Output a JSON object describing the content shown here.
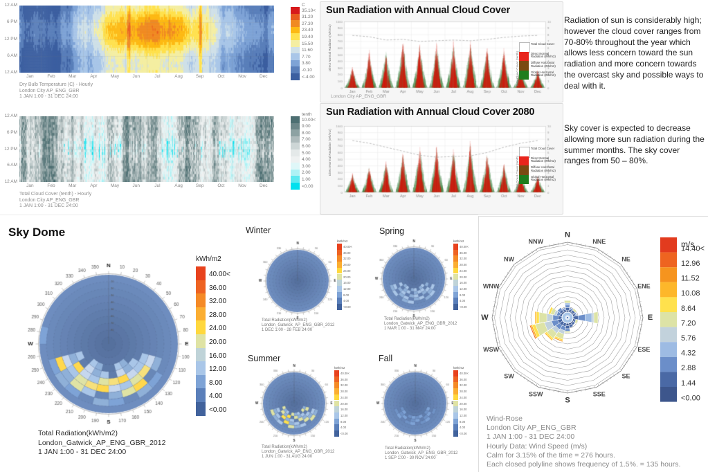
{
  "months": [
    "Jan",
    "Feb",
    "Mar",
    "Apr",
    "May",
    "Jun",
    "Jul",
    "Aug",
    "Sep",
    "Oct",
    "Nov",
    "Dec"
  ],
  "hour_ticks": [
    "12 AM",
    "6 PM",
    "12 PM",
    "6 AM",
    "12 AM"
  ],
  "heatmap_temp": {
    "unit": "C",
    "legend_labels": [
      "35.10<",
      "31.20",
      "27.30",
      "23.40",
      "19.40",
      "15.50",
      "11.60",
      "7.70",
      "3.80",
      "-0.10",
      "<-4.00"
    ],
    "legend_colors": [
      "#d7191c",
      "#e85b1f",
      "#f08a22",
      "#fdb913",
      "#ffe14d",
      "#f4eea2",
      "#cfe0e8",
      "#a9c6e8",
      "#7ea3d6",
      "#5a7fba",
      "#3c5fa0"
    ],
    "caption": [
      "Dry Bulb Temperature (C) - Hourly",
      "London City AP_ENG_GBR",
      "1 JAN 1:00 - 31 DEC 24:00"
    ]
  },
  "heatmap_cloud": {
    "unit": "tenth",
    "legend_labels": [
      "10.00<",
      "9.00",
      "8.00",
      "7.00",
      "6.00",
      "5.00",
      "4.00",
      "3.00",
      "2.00",
      "1.00",
      "<0.00"
    ],
    "legend_colors": [
      "#4d6f72",
      "#6c8688",
      "#8da2a3",
      "#aebbbc",
      "#cdd6d6",
      "#e4e9e9",
      "#eef1f1",
      "#dff7f8",
      "#aef2f5",
      "#5ee9f0",
      "#00e0ee"
    ],
    "caption": [
      "Total Cloud Cover (tenth) - Hourly",
      "London City AP_ENG_GBR",
      "1 JAN 1:00 - 31 DEC 24:00"
    ]
  },
  "radiation_now": {
    "title": "Sun Radiation with Annual Cloud Cover",
    "ylabel": "Direct Normal Radiation (Wh/m2)",
    "y2label": "Total Cloud Cover (tenth)",
    "caption": "London City AP_ENG_GBR",
    "legend": [
      {
        "label": "Total Cloud Cover",
        "color": "#ffffff"
      },
      {
        "label": "Direct Normal Radiation (Wh/m2)",
        "color": "#e8251c"
      },
      {
        "label": "Diffuse Horizontal Radiation (Wh/m2)",
        "color": "#7a4a12"
      },
      {
        "label": "Global Horizontal Radiation (Wh/m2)",
        "color": "#1e7d1e"
      }
    ]
  },
  "radiation_2080": {
    "title": "Sun Radiation with Annual Cloud Cover 2080",
    "ylabel": "Direct Normal Radiation (Wh/m2)",
    "y2label": "Total Cloud Cover (tenth)"
  },
  "annotations": {
    "para1": "Radiation of sun is considerably high; however the cloud cover ranges from 70-80% throughout the year which allows less concern toward the sun radiation and more concern towards the overcast sky and possible ways to deal with it.",
    "para2": "Sky cover is expected to decrease allowing more sun radiation during the summer months. The sky cover ranges from 50 – 80%."
  },
  "sky_dome": {
    "title": "Sky Dome",
    "legend_unit": "kWh/m2",
    "legend_labels": [
      "40.00<",
      "36.00",
      "32.00",
      "28.00",
      "24.00",
      "20.00",
      "16.00",
      "12.00",
      "8.00",
      "4.00",
      "<0.00"
    ],
    "legend_colors": [
      "#e8421d",
      "#ee6322",
      "#f58a26",
      "#fbae32",
      "#ffd83e",
      "#dfe3a4",
      "#bfd3d8",
      "#a9c6e8",
      "#7ea3d6",
      "#5a7fba",
      "#41629c"
    ],
    "caption": [
      "Total Radiation(kWh/m2)",
      "London_Gatwick_AP_ENG_GBR_2012",
      "1 JAN 1:00 - 31 DEC 24:00"
    ]
  },
  "seasonal_domes": [
    {
      "title": "Winter",
      "caption": [
        "Total Radiation(kWh/m2)",
        "London_Gatwick_AP_ENG_GBR_2012",
        "1 DEC 1:00 - 28 FEB 24:00"
      ]
    },
    {
      "title": "Spring",
      "caption": [
        "Total Radiation(kWh/m2)",
        "London_Gatwick_AP_ENG_GBR_2012",
        "1 MAR 1:00 - 31 MAY 24:00"
      ]
    },
    {
      "title": "Summer",
      "caption": [
        "Total Radiation(kWh/m2)",
        "London_Gatwick_AP_ENG_GBR_2012",
        "1 JUN 1:00 - 31 AUG 24:00"
      ]
    },
    {
      "title": "Fall",
      "caption": [
        "Total Radiation(kWh/m2)",
        "London_Gatwick_AP_ENG_GBR_2012",
        "1 SEP 1:00 - 30 NOV 24:00"
      ]
    }
  ],
  "wind_rose": {
    "legend_unit": "m/s",
    "legend_labels": [
      "14.40<",
      "12.96",
      "11.52",
      "10.08",
      "8.64",
      "7.20",
      "5.76",
      "4.32",
      "2.88",
      "1.44",
      "<0.00"
    ],
    "legend_colors": [
      "#e23b1e",
      "#ee6420",
      "#f6941e",
      "#fdb72a",
      "#ffe14d",
      "#dde3a6",
      "#c2d2dc",
      "#9dbbe3",
      "#6b8ec9",
      "#4a69a5",
      "#3d568c"
    ],
    "compass": [
      "N",
      "NNE",
      "NE",
      "ENE",
      "E",
      "ESE",
      "SE",
      "SSE",
      "S",
      "SSW",
      "SW",
      "WSW",
      "W",
      "WNW",
      "NW",
      "NNW"
    ],
    "caption": [
      "Wind-Rose",
      "London City AP_ENG_GBR",
      "1 JAN 1:00 - 31 DEC 24:00",
      "Hourly Data: Wind Speed (m/s)",
      "Calm for 3.15% of the time = 276 hours.",
      "Each closed polyline shows frequency of 1.5%. = 135 hours."
    ],
    "petals": [
      {
        "dir": "N",
        "stack": [
          [
            0,
            0.4
          ],
          [
            1,
            0.5
          ],
          [
            2,
            0.5
          ],
          [
            3,
            0.4
          ],
          [
            5,
            0.5
          ]
        ]
      },
      {
        "dir": "NNE",
        "stack": [
          [
            0,
            0.3
          ],
          [
            1,
            0.3
          ],
          [
            2,
            0.3
          ]
        ]
      },
      {
        "dir": "NE",
        "stack": [
          [
            0,
            0.3
          ],
          [
            1,
            0.4
          ],
          [
            5,
            0.4
          ]
        ]
      },
      {
        "dir": "ENE",
        "stack": [
          [
            0,
            0.3
          ],
          [
            1,
            0.3
          ],
          [
            2,
            0.2
          ]
        ]
      },
      {
        "dir": "E",
        "stack": [
          [
            1,
            1.0
          ],
          [
            2,
            1.4
          ],
          [
            3,
            1.3
          ],
          [
            4,
            0.4
          ],
          [
            5,
            0.8
          ]
        ]
      },
      {
        "dir": "ESE",
        "stack": [
          [
            0,
            0.3
          ],
          [
            1,
            0.3
          ],
          [
            5,
            0.4
          ]
        ]
      },
      {
        "dir": "SE",
        "stack": [
          [
            0,
            0.3
          ],
          [
            1,
            0.4
          ]
        ]
      },
      {
        "dir": "SSE",
        "stack": [
          [
            0,
            0.4
          ],
          [
            1,
            0.5
          ]
        ]
      },
      {
        "dir": "S",
        "stack": [
          [
            0,
            0.5
          ],
          [
            1,
            0.6
          ],
          [
            2,
            0.5
          ],
          [
            5,
            0.3
          ]
        ]
      },
      {
        "dir": "SSW",
        "stack": [
          [
            1,
            0.7
          ],
          [
            2,
            0.8
          ],
          [
            4,
            0.7
          ],
          [
            5,
            1.0
          ],
          [
            6,
            0.3
          ],
          [
            8,
            0.2
          ]
        ]
      },
      {
        "dir": "SW",
        "stack": [
          [
            1,
            0.8
          ],
          [
            2,
            0.9
          ],
          [
            4,
            0.9
          ],
          [
            5,
            1.2
          ],
          [
            6,
            0.3
          ],
          [
            7,
            0.2
          ]
        ]
      },
      {
        "dir": "WSW",
        "stack": [
          [
            1,
            0.9
          ],
          [
            2,
            1.2
          ],
          [
            4,
            1.4
          ],
          [
            5,
            1.8
          ],
          [
            6,
            0.6
          ],
          [
            7,
            0.3
          ],
          [
            9,
            0.2
          ]
        ]
      },
      {
        "dir": "W",
        "stack": [
          [
            1,
            0.8
          ],
          [
            2,
            1.0
          ],
          [
            4,
            1.2
          ],
          [
            5,
            1.5
          ],
          [
            6,
            0.5
          ],
          [
            7,
            0.3
          ]
        ]
      },
      {
        "dir": "WNW",
        "stack": [
          [
            1,
            0.5
          ],
          [
            2,
            0.6
          ],
          [
            4,
            0.5
          ],
          [
            5,
            0.7
          ],
          [
            6,
            0.4
          ]
        ]
      },
      {
        "dir": "NW",
        "stack": [
          [
            0,
            0.4
          ],
          [
            1,
            0.4
          ],
          [
            2,
            0.5
          ]
        ]
      },
      {
        "dir": "NNW",
        "stack": [
          [
            0,
            0.3
          ],
          [
            1,
            0.3
          ],
          [
            2,
            0.3
          ]
        ]
      }
    ]
  },
  "chart_data": [
    {
      "id": "dry_bulb_heatmap",
      "type": "heatmap",
      "title": "Dry Bulb Temperature (C) - Hourly",
      "location": "London City AP_ENG_GBR",
      "period": "1 JAN 1:00 - 31 DEC 24:00",
      "x": "day of year Jan-Dec",
      "y": "hour of day 12 AM - 12 AM",
      "unit": "C",
      "scale_ticks": [
        35.1,
        31.2,
        27.3,
        23.4,
        19.4,
        15.5,
        11.6,
        7.7,
        3.8,
        -0.1,
        -4.0
      ],
      "pattern": "warm 15-31 C daytime band May-Sep with orange hot spells Jun-Aug and mid-April; cold blue 0-8 C spells Jan-Feb and Nov-Dec"
    },
    {
      "id": "cloud_cover_heatmap",
      "type": "heatmap",
      "title": "Total Cloud Cover (tenth) - Hourly",
      "location": "London City AP_ENG_GBR",
      "period": "1 JAN 1:00 - 31 DEC 24:00",
      "x": "day of year Jan-Dec",
      "y": "hour of day 12 AM - 12 AM",
      "unit": "tenth",
      "scale_ticks": [
        10,
        9,
        8,
        7,
        6,
        5,
        4,
        3,
        2,
        1,
        0
      ],
      "pattern": "mostly 6-9 tenths overcast gray; clear cyan streaks 0-2 tenths mainly midday Feb-May and Aug-Oct"
    },
    {
      "id": "sun_radiation_annual",
      "type": "scatter",
      "title": "Sun Radiation with Annual Cloud Cover",
      "categories": [
        "Jan",
        "Feb",
        "Mar",
        "Apr",
        "May",
        "Jun",
        "Jul",
        "Aug",
        "Sep",
        "Oct",
        "Nov",
        "Dec"
      ],
      "ylim": [
        0,
        1000
      ],
      "y2lim": [
        0,
        10
      ],
      "series": [
        {
          "name": "Direct Normal Radiation (Wh/m2)",
          "monthly_peak": [
            340,
            600,
            540,
            790,
            730,
            740,
            740,
            750,
            660,
            630,
            330,
            300
          ]
        },
        {
          "name": "Global Horizontal Radiation (Wh/m2)",
          "monthly_peak": [
            300,
            520,
            560,
            700,
            640,
            660,
            670,
            680,
            600,
            560,
            300,
            260
          ]
        },
        {
          "name": "Diffuse Horizontal Radiation (Wh/m2)",
          "monthly_peak": [
            190,
            330,
            300,
            430,
            400,
            410,
            410,
            410,
            360,
            350,
            180,
            170
          ]
        },
        {
          "name": "Total Cloud Cover (tenth)",
          "monthly_mean": [
            7.9,
            7.7,
            7.2,
            7.3,
            7.0,
            7.1,
            7.2,
            7.1,
            7.3,
            7.6,
            7.8,
            7.9
          ]
        }
      ]
    },
    {
      "id": "sun_radiation_2080",
      "type": "scatter",
      "title": "Sun Radiation with Annual Cloud Cover 2080",
      "categories": [
        "Jan",
        "Feb",
        "Mar",
        "Apr",
        "May",
        "Jun",
        "Jul",
        "Aug",
        "Sep",
        "Oct",
        "Nov",
        "Dec"
      ],
      "ylim": [
        0,
        1000
      ],
      "y2lim": [
        0,
        10
      ],
      "series": [
        {
          "name": "Direct Normal Radiation (Wh/m2)",
          "monthly_peak": [
            300,
            420,
            480,
            640,
            740,
            760,
            700,
            820,
            640,
            460,
            310,
            260
          ]
        },
        {
          "name": "Global Horizontal Radiation (Wh/m2)",
          "monthly_peak": [
            280,
            390,
            450,
            600,
            690,
            710,
            650,
            760,
            590,
            430,
            280,
            240
          ]
        },
        {
          "name": "Diffuse Horizontal Radiation (Wh/m2)",
          "monthly_peak": [
            170,
            230,
            270,
            350,
            410,
            420,
            390,
            450,
            350,
            260,
            170,
            150
          ]
        },
        {
          "name": "Total Cloud Cover (tenth)",
          "monthly_mean": [
            7.8,
            7.4,
            6.8,
            6.2,
            5.6,
            5.3,
            5.4,
            5.5,
            6.0,
            6.8,
            7.4,
            7.8
          ]
        }
      ]
    },
    {
      "id": "sky_dome_annual",
      "type": "radial_heatmap",
      "title": "Sky Dome",
      "value": "Total Radiation(kWh/m2)",
      "location": "London_Gatwick_AP_ENG_GBR_2012",
      "period": "1 JAN 1:00 - 31 DEC 24:00",
      "scale": [
        0,
        40
      ],
      "pattern": "southern band azimuth 110-250 altitude 20-45 reaches 12-28 kWh/m2 with yellow 20-28 patches; rest of dome 0-8 kWh/m2 blue"
    },
    {
      "id": "sky_dome_winter",
      "type": "radial_heatmap",
      "title": "Winter",
      "value": "Total Radiation(kWh/m2)",
      "location": "London_Gatwick_AP_ENG_GBR_2012",
      "period": "1 DEC 1:00 - 28 FEB 24:00",
      "scale": [
        0,
        40
      ],
      "pattern": "uniform low radiation 0-8 kWh/m2 across whole dome"
    },
    {
      "id": "sky_dome_spring",
      "type": "radial_heatmap",
      "title": "Spring",
      "value": "Total Radiation(kWh/m2)",
      "location": "London_Gatwick_AP_ENG_GBR_2012",
      "period": "1 MAR 1:00 - 31 MAY 24:00",
      "scale": [
        0,
        40
      ],
      "pattern": "light blue 8-16 kWh/m2 patches across southern half"
    },
    {
      "id": "sky_dome_summer",
      "type": "radial_heatmap",
      "title": "Summer",
      "value": "Total Radiation(kWh/m2)",
      "location": "London_Gatwick_AP_ENG_GBR_2012",
      "period": "1 JUN 1:00 - 31 AUG 24:00",
      "scale": [
        0,
        40
      ],
      "pattern": "southern belt 8-20 kWh/m2 with occasional yellow patches near 20-24"
    },
    {
      "id": "sky_dome_fall",
      "type": "radial_heatmap",
      "title": "Fall",
      "value": "Total Radiation(kWh/m2)",
      "location": "London_Gatwick_AP_ENG_GBR_2012",
      "period": "1 SEP 1:00 - 30 NOV 24:00",
      "scale": [
        0,
        40
      ],
      "pattern": "mostly 0-8 kWh/m2 with subtle lighter 8-12 patches low in the southern sky"
    },
    {
      "id": "wind_rose",
      "type": "wind_rose",
      "location": "London City AP_ENG_GBR",
      "period": "1 JAN 1:00 - 31 DEC 24:00",
      "unit": "m/s",
      "speed_bin_edges": [
        0,
        1.44,
        2.88,
        4.32,
        5.76,
        7.2,
        8.64,
        10.08,
        11.52,
        12.96,
        14.4
      ],
      "directions": [
        "N",
        "NNE",
        "NE",
        "ENE",
        "E",
        "ESE",
        "SE",
        "SSE",
        "S",
        "SSW",
        "SW",
        "WSW",
        "W",
        "WNW",
        "NW",
        "NNW"
      ],
      "frequency_pct": [
        3.5,
        1.4,
        1.7,
        1.2,
        7.4,
        1.5,
        1.1,
        1.4,
        2.9,
        5.6,
        6.5,
        9.6,
        8.0,
        4.1,
        2.0,
        1.4
      ],
      "calm_pct": 3.15,
      "calm_hours": 276,
      "ring_frequency_pct": 1.5,
      "ring_hours": 135,
      "dominant_direction": "WSW"
    }
  ]
}
